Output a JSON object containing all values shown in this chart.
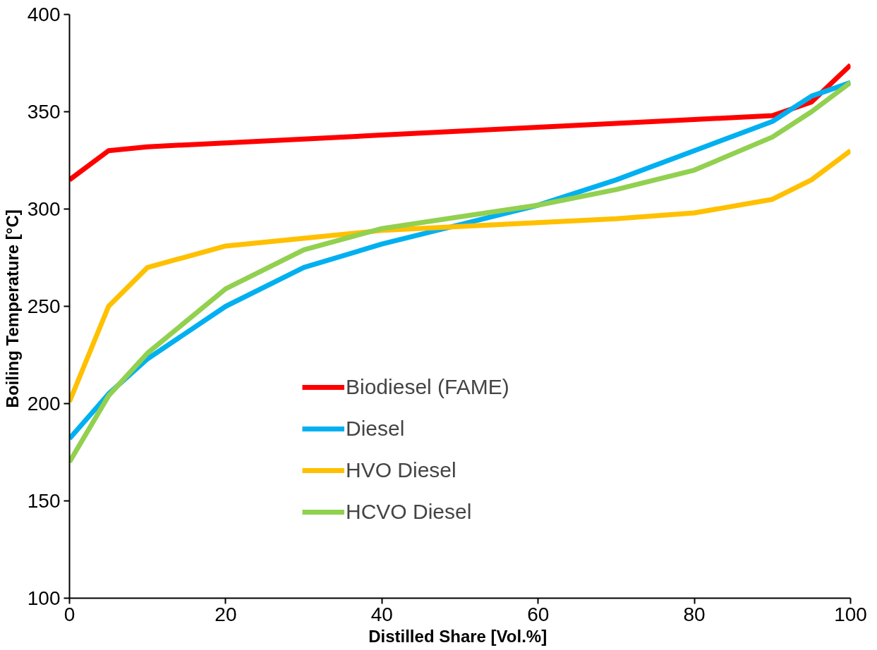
{
  "chart_data": {
    "type": "line",
    "xlabel": "Distilled Share  [Vol.%]",
    "ylabel": "Boiling Temperature  [°C]",
    "xlim": [
      0,
      100
    ],
    "xticks": [
      0,
      20,
      40,
      60,
      80,
      100
    ],
    "ylim": [
      100,
      400
    ],
    "yticks": [
      100,
      150,
      200,
      250,
      300,
      350,
      400
    ],
    "grid": false,
    "legend": "center",
    "marker": "none",
    "line_style": "solid",
    "series": [
      {
        "name": "Biodiesel (FAME)",
        "color": "#ff0000",
        "x": [
          0,
          5,
          10,
          20,
          30,
          40,
          50,
          60,
          70,
          80,
          90,
          95,
          100
        ],
        "values": [
          315,
          330,
          332,
          334,
          336,
          338,
          340,
          342,
          344,
          346,
          348,
          355,
          374
        ]
      },
      {
        "name": "Diesel",
        "color": "#00b0f0",
        "x": [
          0,
          5,
          10,
          20,
          30,
          40,
          50,
          60,
          70,
          80,
          90,
          95,
          100
        ],
        "values": [
          182,
          205,
          223,
          250,
          270,
          282,
          292,
          302,
          315,
          330,
          345,
          358,
          365
        ]
      },
      {
        "name": "HVO Diesel",
        "color": "#ffc000",
        "x": [
          0,
          5,
          10,
          20,
          30,
          40,
          50,
          60,
          70,
          80,
          90,
          95,
          100
        ],
        "values": [
          201,
          250,
          270,
          281,
          285,
          289,
          291,
          293,
          295,
          298,
          305,
          315,
          330
        ]
      },
      {
        "name": "HCVO Diesel",
        "color": "#92d050",
        "x": [
          0,
          5,
          10,
          20,
          30,
          40,
          50,
          60,
          70,
          80,
          90,
          95,
          100
        ],
        "values": [
          170,
          204,
          226,
          259,
          279,
          290,
          296,
          302,
          310,
          320,
          337,
          350,
          365
        ]
      }
    ]
  }
}
